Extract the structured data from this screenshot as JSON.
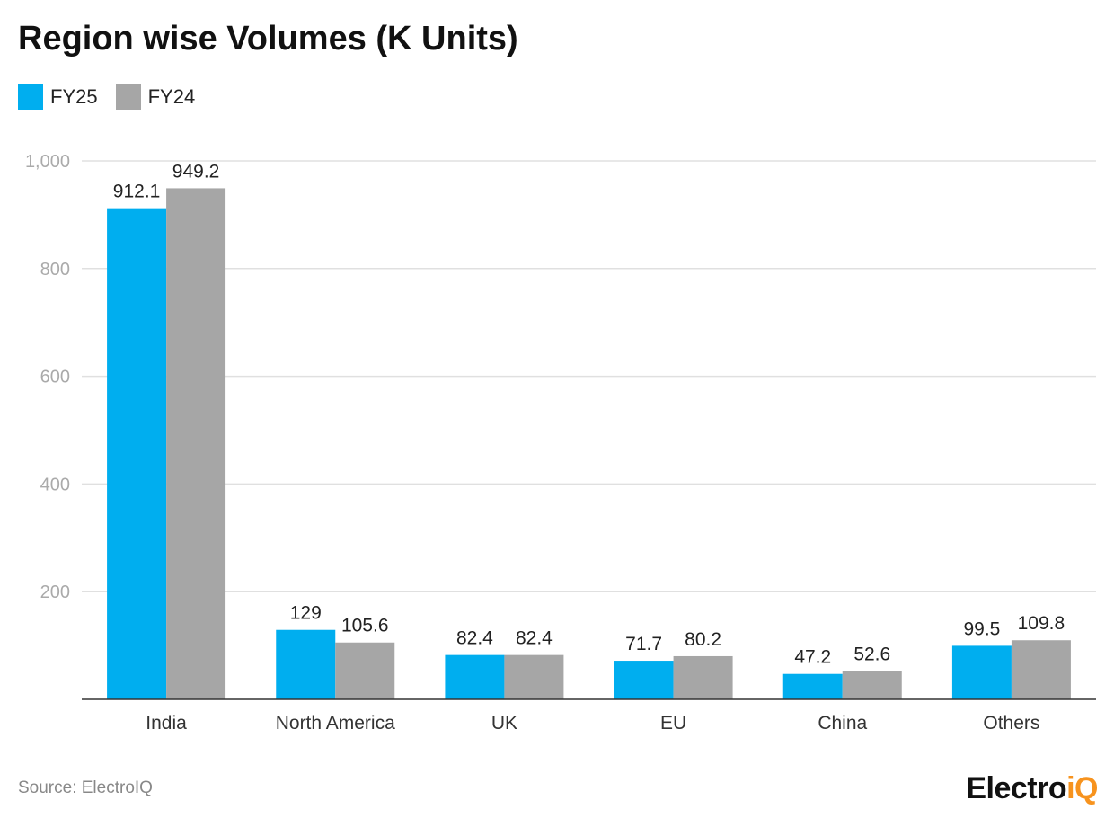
{
  "chart_data": {
    "type": "bar",
    "title": "Region wise Volumes (K Units)",
    "categories": [
      "India",
      "North America",
      "UK",
      "EU",
      "China",
      "Others"
    ],
    "series": [
      {
        "name": "FY25",
        "color": "#00aeef",
        "values": [
          912.1,
          129,
          82.4,
          71.7,
          47.2,
          99.5
        ],
        "labels": [
          "912.1",
          "129",
          "82.4",
          "71.7",
          "47.2",
          "99.5"
        ]
      },
      {
        "name": "FY24",
        "color": "#a6a6a6",
        "values": [
          949.2,
          105.6,
          82.4,
          80.2,
          52.6,
          109.8
        ],
        "labels": [
          "949.2",
          "105.6",
          "82.4",
          "80.2",
          "52.6",
          "109.8"
        ]
      }
    ],
    "ylim": [
      0,
      1000
    ],
    "yticks": [
      200,
      400,
      600,
      800,
      1000
    ],
    "ytick_labels": [
      "200",
      "400",
      "600",
      "800",
      "1,000"
    ],
    "grid": true,
    "legend_position": "top-left"
  },
  "source": "Source: ElectroIQ",
  "logo": {
    "main": "Electro",
    "accent": "iQ"
  }
}
